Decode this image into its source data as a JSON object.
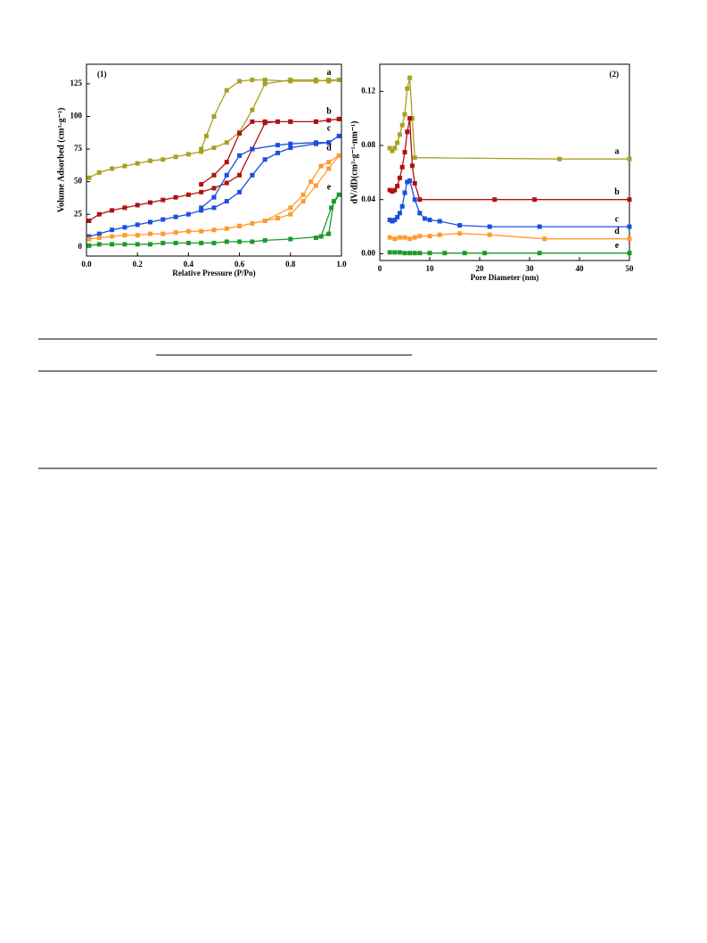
{
  "chart_data": [
    {
      "type": "line",
      "panel_label": "(1)",
      "x_label": "Relative Pressure (P/Po)",
      "y_label": "Volume Adsorbed (cm³·g⁻¹)",
      "xlim": [
        0,
        1
      ],
      "ylim": [
        -7,
        140
      ],
      "xticks": [
        {
          "value": 0,
          "label": "0.0"
        },
        0.2,
        0.4,
        0.6,
        0.8,
        {
          "value": 1,
          "label": "1.0"
        }
      ],
      "yticks": [
        0,
        25,
        50,
        75,
        100,
        125
      ],
      "series": [
        {
          "name": "a",
          "color": "#a8a020",
          "x": [
            0.01,
            0.05,
            0.1,
            0.15,
            0.2,
            0.25,
            0.3,
            0.35,
            0.4,
            0.45,
            0.5,
            0.55,
            0.6,
            0.65,
            0.7,
            0.8,
            0.9,
            0.95,
            0.99,
            0.95,
            0.9,
            0.8,
            0.7,
            0.65,
            0.6,
            0.55,
            0.5,
            0.47,
            0.45
          ],
          "values": [
            53,
            57,
            60,
            62,
            64,
            66,
            67,
            69,
            71,
            73,
            76,
            80,
            88,
            105,
            125,
            128,
            128,
            127,
            128,
            128,
            127,
            127,
            128,
            128,
            127,
            120,
            100,
            85,
            75
          ]
        },
        {
          "name": "b",
          "color": "#b01010",
          "x": [
            0.01,
            0.05,
            0.1,
            0.15,
            0.2,
            0.25,
            0.3,
            0.35,
            0.4,
            0.45,
            0.5,
            0.55,
            0.6,
            0.65,
            0.7,
            0.75,
            0.8,
            0.9,
            0.95,
            0.99,
            0.9,
            0.8,
            0.7,
            0.65,
            0.6,
            0.55,
            0.5,
            0.45
          ],
          "values": [
            20,
            25,
            28,
            30,
            32,
            34,
            36,
            38,
            40,
            42,
            45,
            49,
            55,
            75,
            95,
            96,
            96,
            96,
            97,
            98,
            96,
            96,
            96,
            96,
            87,
            65,
            55,
            48
          ]
        },
        {
          "name": "c",
          "color": "#1a4fe0",
          "x": [
            0.01,
            0.05,
            0.1,
            0.15,
            0.2,
            0.25,
            0.3,
            0.35,
            0.4,
            0.45,
            0.5,
            0.55,
            0.6,
            0.65,
            0.7,
            0.75,
            0.8,
            0.9,
            0.95,
            0.99,
            0.95,
            0.9,
            0.8,
            0.75,
            0.65,
            0.6,
            0.55,
            0.5,
            0.45
          ],
          "values": [
            8,
            10,
            13,
            15,
            17,
            19,
            21,
            23,
            25,
            28,
            30,
            35,
            42,
            55,
            67,
            72,
            76,
            79,
            80,
            85,
            80,
            80,
            79,
            78,
            75,
            70,
            55,
            38,
            30
          ]
        },
        {
          "name": "d",
          "color": "#ff9a2e",
          "x": [
            0.01,
            0.05,
            0.1,
            0.15,
            0.2,
            0.25,
            0.3,
            0.35,
            0.4,
            0.45,
            0.5,
            0.55,
            0.6,
            0.65,
            0.7,
            0.75,
            0.8,
            0.85,
            0.9,
            0.95,
            0.99,
            0.95,
            0.92,
            0.88,
            0.85,
            0.8,
            0.7,
            0.6
          ],
          "values": [
            6,
            7,
            8,
            9,
            9,
            10,
            10,
            11,
            12,
            12,
            13,
            14,
            16,
            18,
            20,
            22,
            25,
            35,
            47,
            60,
            70,
            65,
            62,
            50,
            40,
            30,
            20,
            16
          ]
        },
        {
          "name": "e",
          "color": "#1c9a2a",
          "x": [
            0.01,
            0.05,
            0.1,
            0.15,
            0.2,
            0.25,
            0.3,
            0.35,
            0.4,
            0.45,
            0.5,
            0.55,
            0.6,
            0.65,
            0.7,
            0.8,
            0.92,
            0.96,
            0.99,
            0.97,
            0.95,
            0.9
          ],
          "values": [
            1,
            2,
            2,
            2,
            2,
            2,
            3,
            3,
            3,
            3,
            3,
            4,
            4,
            4,
            5,
            6,
            8,
            30,
            40,
            35,
            10,
            7
          ]
        }
      ]
    },
    {
      "type": "line",
      "panel_label": "(2)",
      "x_label": "Pore Diameter (nm)",
      "y_label": "dV/dD(cm³·g⁻¹·nm⁻¹)",
      "xlim": [
        0,
        50
      ],
      "ylim": [
        -0.005,
        0.14
      ],
      "xticks": [
        0,
        10,
        20,
        30,
        40,
        50
      ],
      "yticks": [
        {
          "value": 0,
          "label": "0.00"
        },
        {
          "value": 0.04,
          "label": "0.04"
        },
        {
          "value": 0.08,
          "label": "0.08"
        },
        {
          "value": 0.12,
          "label": "0.12"
        }
      ],
      "series": [
        {
          "name": "a",
          "color": "#a8a020",
          "x": [
            2,
            2.5,
            3,
            3.5,
            4,
            4.5,
            5,
            5.5,
            6,
            6.5,
            7,
            36,
            50
          ],
          "values": [
            0.078,
            0.076,
            0.078,
            0.082,
            0.088,
            0.095,
            0.103,
            0.122,
            0.13,
            0.1,
            0.071,
            0.07,
            0.07
          ]
        },
        {
          "name": "b",
          "color": "#b01010",
          "x": [
            2,
            2.5,
            3,
            3.5,
            4,
            4.5,
            5,
            5.5,
            6,
            6.5,
            7,
            8,
            23,
            31,
            50
          ],
          "values": [
            0.047,
            0.046,
            0.047,
            0.05,
            0.056,
            0.064,
            0.075,
            0.09,
            0.1,
            0.065,
            0.052,
            0.04,
            0.04,
            0.04,
            0.04
          ]
        },
        {
          "name": "c",
          "color": "#1a4fe0",
          "x": [
            2,
            2.5,
            3,
            3.5,
            4,
            4.5,
            5,
            5.5,
            6,
            7,
            8,
            9,
            10,
            12,
            16,
            22,
            32,
            50
          ],
          "values": [
            0.025,
            0.024,
            0.025,
            0.027,
            0.03,
            0.035,
            0.045,
            0.053,
            0.054,
            0.04,
            0.03,
            0.026,
            0.025,
            0.024,
            0.021,
            0.02,
            0.02,
            0.02
          ]
        },
        {
          "name": "d",
          "color": "#ff9a2e",
          "x": [
            2,
            3,
            4,
            5,
            6,
            7,
            8,
            10,
            12,
            16,
            22,
            33,
            50
          ],
          "values": [
            0.012,
            0.011,
            0.012,
            0.012,
            0.011,
            0.012,
            0.013,
            0.013,
            0.014,
            0.015,
            0.014,
            0.011,
            0.011
          ]
        },
        {
          "name": "e",
          "color": "#1c9a2a",
          "x": [
            2,
            3,
            4,
            5,
            6,
            7,
            8,
            10,
            13,
            17,
            21,
            32,
            50
          ],
          "values": [
            0.001,
            0.001,
            0.001,
            0.0005,
            0.0005,
            0.0005,
            0.0005,
            0.0005,
            0.0005,
            0.0005,
            0.0005,
            0.0005,
            0.0005
          ]
        }
      ]
    }
  ]
}
